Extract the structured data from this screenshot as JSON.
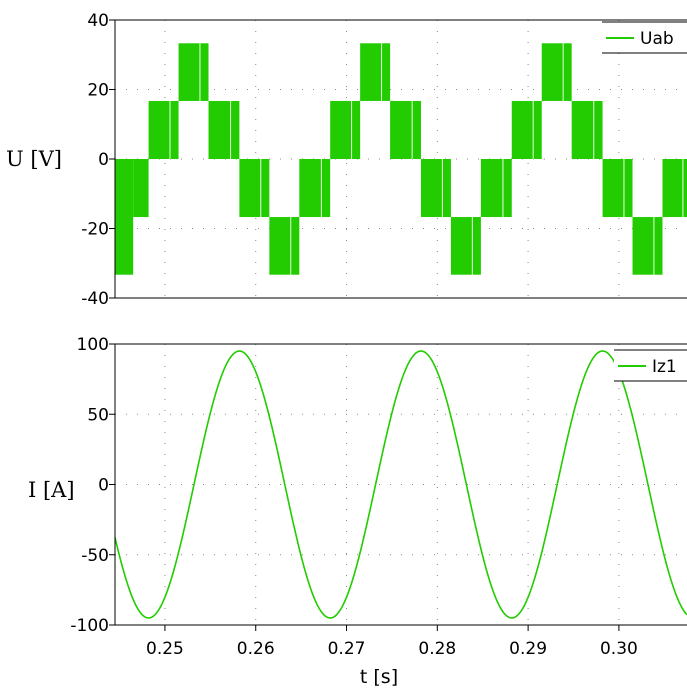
{
  "colors": {
    "series": "#22cc00",
    "axis": "#000000",
    "grid": "#8a8a8a",
    "background": "#ffffff"
  },
  "chart_data": [
    {
      "type": "line",
      "ylabel": "U [V]",
      "xlabel": "",
      "xlim": [
        0.2445,
        0.3075
      ],
      "ylim": [
        -40,
        40
      ],
      "yticks": [
        "40",
        "20",
        "0",
        "-20",
        "-40"
      ],
      "ytick_values": [
        40,
        20,
        0,
        -20,
        -40
      ],
      "grid": true,
      "legend_position": "top-right",
      "series": [
        {
          "name": "Uab",
          "kind": "pwm-staircase",
          "period_s": 0.02,
          "levels": [
            16.7,
            33.3,
            16.7,
            -16.7,
            -33.3,
            -16.7
          ],
          "segments": [
            {
              "t0": 0.2445,
              "t1": 0.2465,
              "lo": -33.3,
              "hi": 0
            },
            {
              "t0": 0.2465,
              "t1": 0.2482,
              "lo": -16.7,
              "hi": 0
            },
            {
              "t0": 0.2482,
              "t1": 0.2515,
              "lo": 0,
              "hi": 16.7
            },
            {
              "t0": 0.2515,
              "t1": 0.2548,
              "lo": 16.7,
              "hi": 33.3
            },
            {
              "t0": 0.2548,
              "t1": 0.2582,
              "lo": 0,
              "hi": 16.7
            },
            {
              "t0": 0.2582,
              "t1": 0.2615,
              "lo": -16.7,
              "hi": 0
            },
            {
              "t0": 0.2615,
              "t1": 0.2648,
              "lo": -33.3,
              "hi": -16.7
            },
            {
              "t0": 0.2648,
              "t1": 0.2682,
              "lo": -16.7,
              "hi": 0
            },
            {
              "t0": 0.2682,
              "t1": 0.2715,
              "lo": 0,
              "hi": 16.7
            },
            {
              "t0": 0.2715,
              "t1": 0.2748,
              "lo": 16.7,
              "hi": 33.3
            },
            {
              "t0": 0.2748,
              "t1": 0.2782,
              "lo": 0,
              "hi": 16.7
            },
            {
              "t0": 0.2782,
              "t1": 0.2815,
              "lo": -16.7,
              "hi": 0
            },
            {
              "t0": 0.2815,
              "t1": 0.2848,
              "lo": -33.3,
              "hi": -16.7
            },
            {
              "t0": 0.2848,
              "t1": 0.2882,
              "lo": -16.7,
              "hi": 0
            },
            {
              "t0": 0.2882,
              "t1": 0.2915,
              "lo": 0,
              "hi": 16.7
            },
            {
              "t0": 0.2915,
              "t1": 0.2948,
              "lo": 16.7,
              "hi": 33.3
            },
            {
              "t0": 0.2948,
              "t1": 0.2982,
              "lo": 0,
              "hi": 16.7
            },
            {
              "t0": 0.2982,
              "t1": 0.3015,
              "lo": -16.7,
              "hi": 0
            },
            {
              "t0": 0.3015,
              "t1": 0.3048,
              "lo": -33.3,
              "hi": -16.7
            },
            {
              "t0": 0.3048,
              "t1": 0.3075,
              "lo": -16.7,
              "hi": 0
            }
          ]
        }
      ]
    },
    {
      "type": "line",
      "ylabel": "I [A]",
      "xlabel": "t [s]",
      "xlim": [
        0.2445,
        0.3075
      ],
      "ylim": [
        -100,
        100
      ],
      "yticks": [
        "100",
        "50",
        "0",
        "-50",
        "-100"
      ],
      "ytick_values": [
        100,
        50,
        0,
        -50,
        -100
      ],
      "xticks": [
        "0.25",
        "0.26",
        "0.27",
        "0.28",
        "0.29",
        "0.30"
      ],
      "xtick_values": [
        0.25,
        0.26,
        0.27,
        0.28,
        0.29,
        0.3
      ],
      "grid": true,
      "legend_position": "top-right",
      "series": [
        {
          "name": "Iz1",
          "kind": "sine",
          "amplitude": 95,
          "frequency_hz": 50,
          "peak_times_s": [
            0.2582,
            0.2782,
            0.2982
          ],
          "trough_times_s": [
            0.2482,
            0.2682,
            0.2882
          ]
        }
      ]
    }
  ]
}
